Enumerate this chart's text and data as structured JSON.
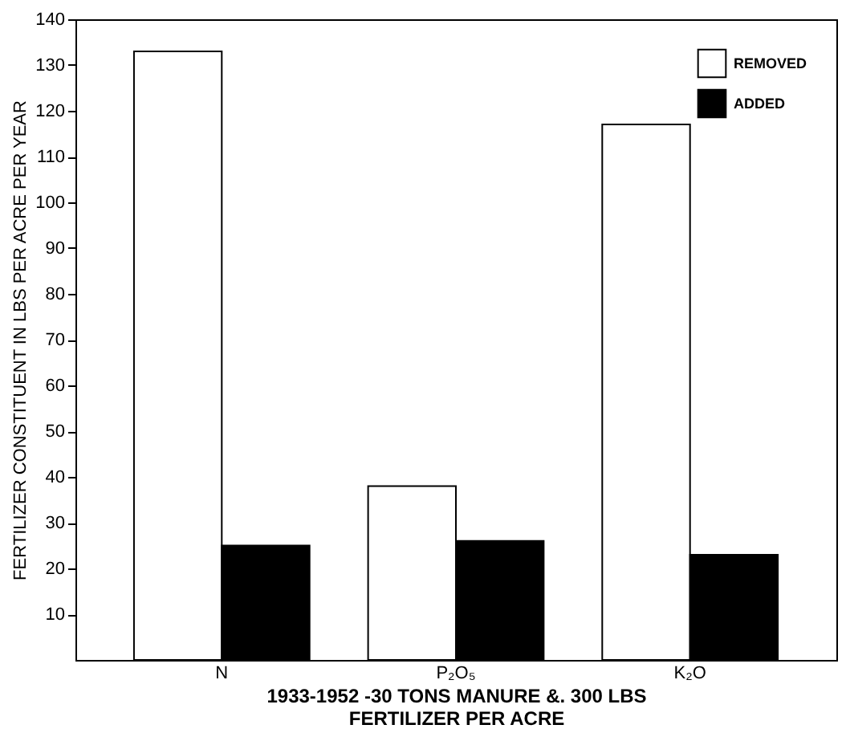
{
  "chart_data": {
    "type": "bar",
    "categories": [
      "N",
      "P₂O₅",
      "K₂O"
    ],
    "series": [
      {
        "name": "REMOVED",
        "color": "#ffffff",
        "values": [
          133,
          38,
          117
        ]
      },
      {
        "name": "ADDED",
        "color": "#000000",
        "values": [
          25,
          26,
          23
        ]
      }
    ],
    "ylabel": "FERTILIZER CONSTITUENT IN LBS PER ACRE PER YEAR",
    "xlabel": "1933-1952 -30 TONS MANURE &. 300 LBS FERTILIZER PER ACRE",
    "ylim": [
      0,
      140
    ],
    "yticks": [
      10,
      20,
      30,
      40,
      50,
      60,
      70,
      80,
      90,
      100,
      110,
      120,
      130,
      140
    ],
    "grid": false,
    "legend": "top right"
  }
}
